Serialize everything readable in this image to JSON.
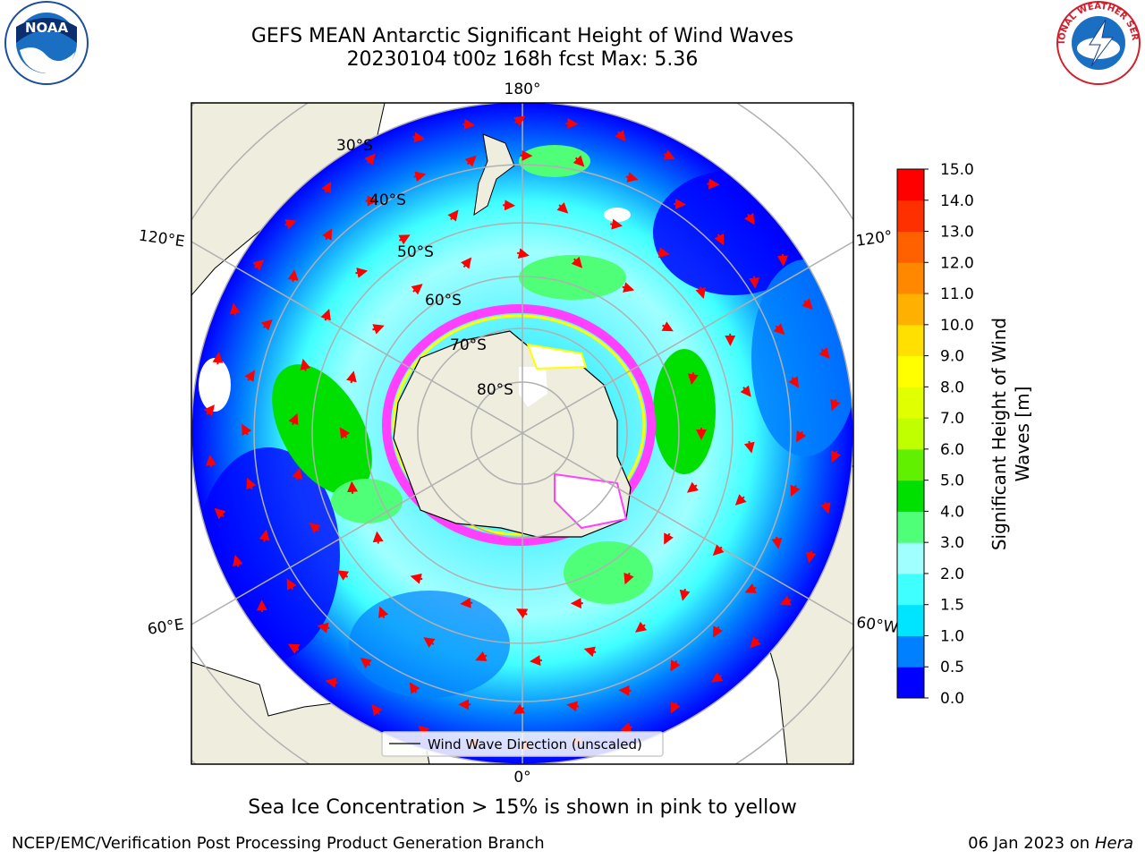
{
  "title": {
    "line1": "GEFS MEAN Antarctic Significant Height of Wind Waves",
    "line2": "20230104 t00z 168h fcst   Max: 5.36"
  },
  "map": {
    "projection": "south-polar-stereographic",
    "meridian_labels": {
      "top": "180°",
      "bottom": "0°",
      "left_upper": "120°E",
      "left_lower": "60°E",
      "right_upper": "120°",
      "right_lower": "60°W"
    },
    "latitude_labels": [
      "30°S",
      "40°S",
      "50°S",
      "60°S",
      "70°S",
      "80°S"
    ],
    "legend_label": "Wind Wave Direction (unscaled)",
    "arrow_color": "#ff0000",
    "land_color": "#efedde",
    "ocean_low_color": "#0000ff"
  },
  "colorbar": {
    "label_line1": "Significant Height of Wind",
    "label_line2": "Waves [m]",
    "ticks": [
      "0.0",
      "0.5",
      "1.0",
      "1.5",
      "2.0",
      "3.0",
      "4.0",
      "5.0",
      "6.0",
      "7.0",
      "8.0",
      "9.0",
      "10.0",
      "11.0",
      "12.0",
      "13.0",
      "14.0",
      "15.0"
    ],
    "colors": [
      "#0000ff",
      "#0080ff",
      "#00e5ff",
      "#40ffff",
      "#a0ffff",
      "#50ff78",
      "#00e000",
      "#60f000",
      "#c0ff00",
      "#e0ff00",
      "#ffff00",
      "#ffe000",
      "#ffb000",
      "#ff8800",
      "#ff6000",
      "#ff3000",
      "#ff0000"
    ]
  },
  "caption": "Sea Ice Concentration > 15% is shown in pink to yellow",
  "footer": {
    "left": "NCEP/EMC/Verification Post Processing Product Generation Branch",
    "right_date": "06 Jan 2023 on ",
    "right_host": "Hera"
  },
  "logos": {
    "noaa_text": "NOAA",
    "nws_text": "NATIONAL WEATHER SERVICE"
  }
}
